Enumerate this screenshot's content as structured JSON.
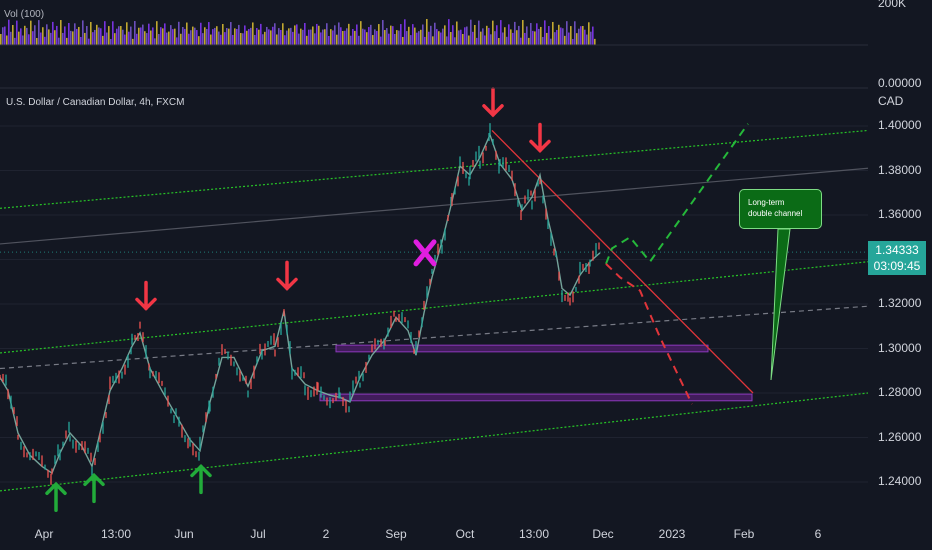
{
  "header": {
    "symbol": "U.S. Dollar / Canadian Dollar, 4h, FXCM",
    "volume_label": "Vol (100)",
    "currency": "CAD"
  },
  "volume_axis": {
    "top_label": "200K",
    "bottom_label": "0.00000"
  },
  "price_badge": {
    "price": "1.34333",
    "countdown": "03:09:45",
    "color": "#26a69a"
  },
  "annotation": {
    "line1": "Long-term",
    "line2": "double channel"
  },
  "chart_data": {
    "type": "line",
    "description_source": "4h candlestick price chart",
    "y_ticks": [
      "1.40000",
      "1.38000",
      "1.36000",
      "1.34000",
      "1.32000",
      "1.30000",
      "1.28000",
      "1.26000",
      "1.24000"
    ],
    "x_ticks": [
      "Apr",
      "13:00",
      "Jun",
      "Jul",
      "2",
      "Sep",
      "Oct",
      "13:00",
      "Dec",
      "2023",
      "Feb",
      "6"
    ],
    "ylim": [
      1.231,
      1.418
    ],
    "last_price": 1.34333,
    "price_path": [
      [
        0,
        1.287
      ],
      [
        8,
        1.281
      ],
      [
        18,
        1.262
      ],
      [
        30,
        1.252
      ],
      [
        42,
        1.247
      ],
      [
        52,
        1.244
      ],
      [
        60,
        1.253
      ],
      [
        70,
        1.262
      ],
      [
        82,
        1.256
      ],
      [
        92,
        1.247
      ],
      [
        100,
        1.262
      ],
      [
        110,
        1.281
      ],
      [
        122,
        1.291
      ],
      [
        132,
        1.301
      ],
      [
        140,
        1.307
      ],
      [
        150,
        1.291
      ],
      [
        162,
        1.281
      ],
      [
        176,
        1.27
      ],
      [
        190,
        1.259
      ],
      [
        200,
        1.254
      ],
      [
        210,
        1.276
      ],
      [
        222,
        1.296
      ],
      [
        234,
        1.296
      ],
      [
        248,
        1.283
      ],
      [
        262,
        1.299
      ],
      [
        275,
        1.301
      ],
      [
        284,
        1.317
      ],
      [
        292,
        1.291
      ],
      [
        305,
        1.284
      ],
      [
        318,
        1.281
      ],
      [
        330,
        1.279
      ],
      [
        340,
        1.278
      ],
      [
        350,
        1.276
      ],
      [
        360,
        1.287
      ],
      [
        372,
        1.297
      ],
      [
        385,
        1.304
      ],
      [
        396,
        1.314
      ],
      [
        408,
        1.308
      ],
      [
        416,
        1.297
      ],
      [
        424,
        1.316
      ],
      [
        432,
        1.332
      ],
      [
        442,
        1.348
      ],
      [
        452,
        1.366
      ],
      [
        460,
        1.382
      ],
      [
        470,
        1.378
      ],
      [
        480,
        1.386
      ],
      [
        490,
        1.396
      ],
      [
        500,
        1.383
      ],
      [
        512,
        1.376
      ],
      [
        522,
        1.362
      ],
      [
        532,
        1.368
      ],
      [
        540,
        1.378
      ],
      [
        548,
        1.358
      ],
      [
        556,
        1.343
      ],
      [
        562,
        1.327
      ],
      [
        570,
        1.324
      ],
      [
        580,
        1.333
      ],
      [
        590,
        1.339
      ],
      [
        600,
        1.343
      ]
    ],
    "volume_path": [
      [
        0,
        0.8
      ],
      [
        100,
        0.7
      ],
      [
        200,
        0.9
      ],
      [
        300,
        0.8
      ],
      [
        400,
        0.9
      ],
      [
        500,
        1.0
      ],
      [
        596,
        0.8
      ]
    ],
    "overlays": {
      "channel_lines": [
        {
          "x1": 0,
          "y1": 1.363,
          "x2": 868,
          "y2": 1.398,
          "color": "#27c427",
          "style": "dotted"
        },
        {
          "x1": 0,
          "y1": 1.298,
          "x2": 868,
          "y2": 1.339,
          "color": "#27c427",
          "style": "dotted"
        },
        {
          "x1": 0,
          "y1": 1.236,
          "x2": 868,
          "y2": 1.28,
          "color": "#27c427",
          "style": "dotted"
        },
        {
          "x1": 0,
          "y1": 1.291,
          "x2": 868,
          "y2": 1.319,
          "color": "#787b86",
          "style": "dashed"
        },
        {
          "x1": 0,
          "y1": 1.347,
          "x2": 868,
          "y2": 1.381,
          "color": "#50535e",
          "style": "solid"
        }
      ],
      "trend_line": {
        "x1": 492,
        "y1": 1.398,
        "x2": 753,
        "y2": 1.28,
        "color": "#e0353a"
      },
      "zones": [
        {
          "x1": 336,
          "x2": 708,
          "y_top": 1.3015,
          "y_bottom": 1.2985
        },
        {
          "x1": 320,
          "x2": 752,
          "y_top": 1.2795,
          "y_bottom": 1.2765
        }
      ],
      "projection_up": [
        [
          606,
          1.338
        ],
        [
          612,
          1.345
        ],
        [
          630,
          1.35
        ],
        [
          650,
          1.339
        ],
        [
          748,
          1.401
        ]
      ],
      "projection_down": [
        [
          606,
          1.338
        ],
        [
          620,
          1.332
        ],
        [
          640,
          1.326
        ],
        [
          660,
          1.305
        ],
        [
          692,
          1.275
        ]
      ],
      "down_arrows": [
        [
          146,
          1.318
        ],
        [
          287,
          1.327
        ],
        [
          493,
          1.405
        ],
        [
          540,
          1.389
        ]
      ],
      "up_arrows": [
        [
          56,
          1.239
        ],
        [
          94,
          1.243
        ],
        [
          201,
          1.247
        ]
      ],
      "cross": [
        425,
        1.343
      ]
    }
  }
}
